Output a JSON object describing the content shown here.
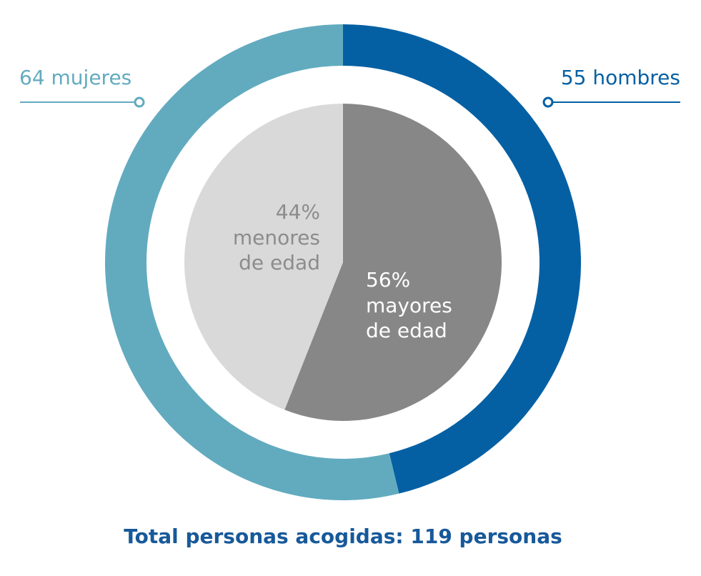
{
  "chart_data": [
    {
      "type": "donut",
      "title": "Total personas acogidas: 119 personas",
      "values": [
        55,
        64
      ],
      "value_labels": [
        "55 hombres",
        "64 mujeres"
      ],
      "colors": [
        "#0560a3",
        "#62abbf"
      ]
    },
    {
      "type": "pie",
      "categories": [
        "mayores de edad",
        "menores de edad"
      ],
      "values": [
        56,
        44
      ],
      "value_labels": [
        "56%",
        "44%"
      ],
      "colors": [
        "#878787",
        "#d9d9d9"
      ]
    }
  ]
}
